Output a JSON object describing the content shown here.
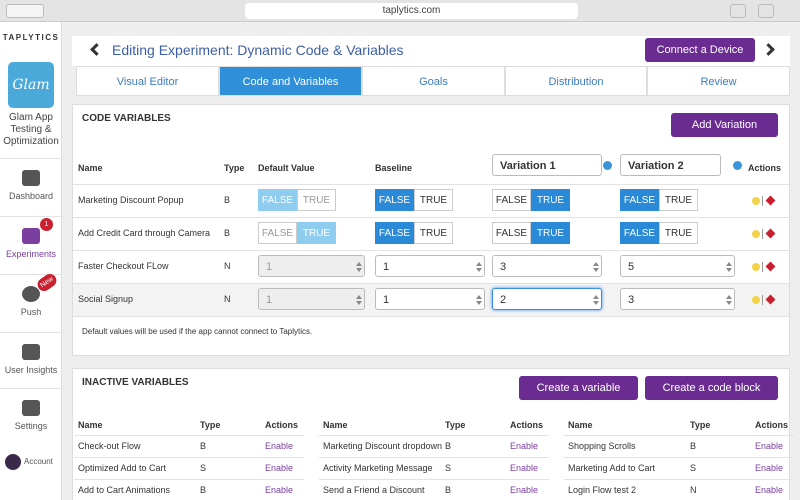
{
  "browser": {
    "url": "taplytics.com"
  },
  "sidebar": {
    "brand": "TAPLYTICS",
    "app_logo": "Glam",
    "app_name": "Glam App Testing & Optimization",
    "nav": [
      {
        "label": "Dashboard"
      },
      {
        "label": "Experiments",
        "badge": "1"
      },
      {
        "label": "Push",
        "badge": "New"
      },
      {
        "label": "User Insights"
      },
      {
        "label": "Settings"
      }
    ],
    "account": "Account"
  },
  "header": {
    "title": "Editing Experiment: Dynamic Code & Variables",
    "connect_button": "Connect a Device"
  },
  "tabs": [
    "Visual Editor",
    "Code and Variables",
    "Goals",
    "Distribution",
    "Review"
  ],
  "active_tab": 1,
  "code_variables": {
    "title": "CODE VARIABLES",
    "add_button": "Add Variation",
    "columns": [
      "Name",
      "Type",
      "Default Value",
      "Baseline",
      "Variation 1",
      "Variation 2",
      "Actions"
    ],
    "toggle_labels": [
      "FALSE",
      "TRUE"
    ],
    "rows": [
      {
        "name": "Marketing Discount Popup",
        "type": "B",
        "default": "FALSE",
        "baseline": "FALSE",
        "variation_1": "TRUE",
        "variation_2": "FALSE"
      },
      {
        "name": "Add Credit Card through Camera",
        "type": "B",
        "default": "TRUE",
        "baseline": "FALSE",
        "variation_1": "TRUE",
        "variation_2": "FALSE"
      },
      {
        "name": "Faster Checkout FLow",
        "type": "N",
        "default": 1,
        "baseline": 1,
        "variation_1": 3,
        "variation_2": 5
      },
      {
        "name": "Social Signup",
        "type": "N",
        "default": 1,
        "baseline": 1,
        "variation_1": 2,
        "variation_2": 3
      }
    ],
    "note": "Default values will be used if the app cannot connect to Taplytics."
  },
  "inactive_variables": {
    "title": "INACTIVE VARIABLES",
    "create_variable": "Create a variable",
    "create_code_block": "Create a code block",
    "columns": [
      "Name",
      "Type",
      "Actions"
    ],
    "action_label": "Enable",
    "groups": [
      [
        {
          "name": "Check-out Flow",
          "type": "B"
        },
        {
          "name": "Optimized Add to Cart",
          "type": "S"
        },
        {
          "name": "Add to Cart Animations",
          "type": "B"
        }
      ],
      [
        {
          "name": "Marketing Discount dropdown",
          "type": "B"
        },
        {
          "name": "Activity Marketing Message",
          "type": "S"
        },
        {
          "name": "Send a Friend a Discount",
          "type": "B"
        }
      ],
      [
        {
          "name": "Shopping Scrolls",
          "type": "B"
        },
        {
          "name": "Marketing Add to Cart",
          "type": "S"
        },
        {
          "name": "Login Flow test 2",
          "type": "N"
        }
      ]
    ]
  }
}
